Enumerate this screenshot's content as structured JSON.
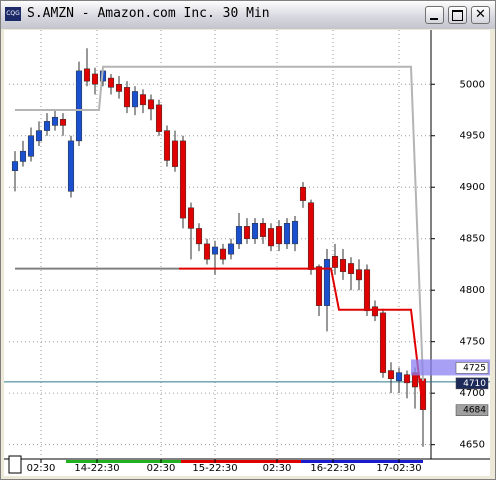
{
  "chart_data": {
    "type": "candlestick",
    "title": "S.AMZN - Amazon.com Inc. 30 Min",
    "open": [
      4916,
      4925,
      4930,
      4945,
      4955,
      4960,
      4966,
      4896,
      4945,
      5015,
      5010,
      5003,
      5006,
      5000,
      4997,
      4978,
      4990,
      4985,
      4980,
      4955,
      4945,
      4945,
      4880,
      4860,
      4845,
      4835,
      4840,
      4835,
      4845,
      4862,
      4850,
      4865,
      4860,
      4862,
      4845,
      4845,
      4900,
      4885,
      4823,
      4785,
      4833,
      4830,
      4826,
      4820,
      4820,
      4784,
      4778,
      4722,
      4712,
      4718,
      4720,
      4714
    ],
    "high": [
      4935,
      4945,
      4958,
      4964,
      4972,
      4974,
      4972,
      4950,
      5022,
      5035,
      5016,
      5016,
      5010,
      5008,
      5003,
      4998,
      4995,
      4990,
      4985,
      4960,
      4955,
      4950,
      4885,
      4865,
      4850,
      4848,
      4845,
      4850,
      4875,
      4870,
      4870,
      4870,
      4865,
      4868,
      4870,
      4872,
      4905,
      4888,
      4825,
      4840,
      4845,
      4840,
      4832,
      4830,
      4825,
      4790,
      4782,
      4730,
      4725,
      4722,
      4725,
      4718
    ],
    "low": [
      4896,
      4920,
      4925,
      4940,
      4950,
      4955,
      4950,
      4890,
      4940,
      4998,
      4990,
      4998,
      4990,
      4986,
      4972,
      4970,
      4972,
      4965,
      4950,
      4920,
      4915,
      4860,
      4830,
      4838,
      4825,
      4815,
      4825,
      4830,
      4840,
      4845,
      4845,
      4845,
      4838,
      4838,
      4840,
      4838,
      4880,
      4815,
      4775,
      4760,
      4815,
      4810,
      4800,
      4800,
      4775,
      4770,
      4715,
      4700,
      4700,
      4695,
      4685,
      4648
    ],
    "close": [
      4925,
      4935,
      4950,
      4955,
      4964,
      4968,
      4960,
      4945,
      5013,
      5003,
      5000,
      5013,
      4997,
      4993,
      4978,
      4993,
      4980,
      4976,
      4954,
      4926,
      4920,
      4870,
      4860,
      4845,
      4830,
      4842,
      4830,
      4845,
      4862,
      4850,
      4865,
      4852,
      4843,
      4845,
      4865,
      4867,
      4887,
      4820,
      4785,
      4830,
      4822,
      4818,
      4816,
      4810,
      4780,
      4775,
      4720,
      4714,
      4720,
      4710,
      4706,
      4684
    ],
    "up_color": "#1a4fd0",
    "down_color": "#e00000",
    "lines": [
      {
        "color": "#b4b4b4",
        "x": [
          0,
          10.5,
          11,
          49.5,
          51
        ],
        "values": [
          4975,
          4975,
          5017,
          5017,
          4712
        ]
      },
      {
        "color": "#808080",
        "x": [
          0,
          20.5
        ],
        "values": [
          4821,
          4821
        ]
      },
      {
        "color": "#e00000",
        "x": [
          20.5,
          39.5,
          40.5,
          49.5,
          51
        ],
        "values": [
          4821,
          4821,
          4781,
          4781,
          4684
        ]
      }
    ],
    "hline": {
      "value": 4711,
      "color": "#2a7a8a"
    },
    "price_markers": [
      4725,
      4710,
      4684
    ],
    "xlim": [
      -0.75,
      52
    ],
    "ylim": [
      4639,
      5042
    ],
    "xticks": [
      {
        "value": 3.25,
        "label": "02:30"
      },
      {
        "value": 10.25,
        "label": "14-22:30"
      },
      {
        "value": 18.25,
        "label": "02:30"
      },
      {
        "value": 25,
        "label": "15-22:30"
      },
      {
        "value": 32.75,
        "label": "02:30"
      },
      {
        "value": 39.75,
        "label": "16-22:30"
      },
      {
        "value": 48,
        "label": "17-02:30"
      }
    ],
    "yticks": [
      4650,
      4700,
      4750,
      4800,
      4850,
      4900,
      4950,
      5000
    ],
    "grid": true
  }
}
